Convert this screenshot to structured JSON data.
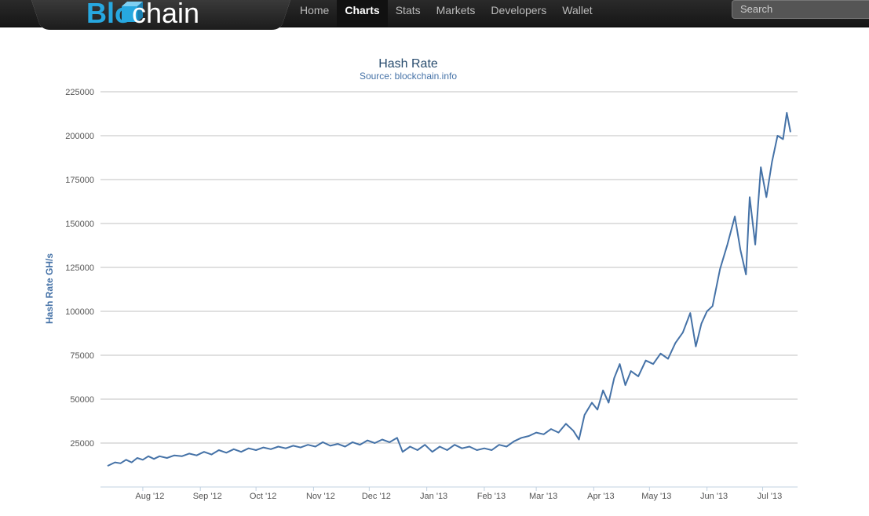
{
  "brand": {
    "logo_blue": "Blo",
    "logo_chain": "chain",
    "accent": "#27a8e0"
  },
  "nav": {
    "items": [
      {
        "label": "Home",
        "active": false
      },
      {
        "label": "Charts",
        "active": true
      },
      {
        "label": "Stats",
        "active": false
      },
      {
        "label": "Markets",
        "active": false
      },
      {
        "label": "Developers",
        "active": false
      },
      {
        "label": "Wallet",
        "active": false
      }
    ]
  },
  "search": {
    "placeholder": "Search"
  },
  "chart_data": {
    "type": "line",
    "title": "Hash Rate",
    "subtitle": "Source: blockchain.info",
    "ylabel": "Hash Rate GH/s",
    "xlabel": "",
    "ylim": [
      0,
      225000
    ],
    "yticks": [
      25000,
      50000,
      75000,
      100000,
      125000,
      150000,
      175000,
      200000,
      225000
    ],
    "xticks": [
      "Aug '12",
      "Sep '12",
      "Oct '12",
      "Nov '12",
      "Dec '12",
      "Jan '13",
      "Feb '13",
      "Mar '13",
      "Apr '13",
      "May '13",
      "Jun '13",
      "Jul '13"
    ],
    "grid": true,
    "line_color": "#4572a7",
    "series": [
      {
        "name": "",
        "x_start": "2012-07-13",
        "x_end": "2013-07-16",
        "points": [
          [
            "2012-07-13",
            12000
          ],
          [
            "2012-07-17",
            14000
          ],
          [
            "2012-07-20",
            13500
          ],
          [
            "2012-07-23",
            15500
          ],
          [
            "2012-07-26",
            14000
          ],
          [
            "2012-07-29",
            16500
          ],
          [
            "2012-08-01",
            15500
          ],
          [
            "2012-08-04",
            17500
          ],
          [
            "2012-08-07",
            16000
          ],
          [
            "2012-08-10",
            17500
          ],
          [
            "2012-08-14",
            16500
          ],
          [
            "2012-08-18",
            18000
          ],
          [
            "2012-08-22",
            17500
          ],
          [
            "2012-08-26",
            19000
          ],
          [
            "2012-08-30",
            18000
          ],
          [
            "2012-09-03",
            20000
          ],
          [
            "2012-09-07",
            18500
          ],
          [
            "2012-09-11",
            21000
          ],
          [
            "2012-09-15",
            19500
          ],
          [
            "2012-09-19",
            21500
          ],
          [
            "2012-09-23",
            20000
          ],
          [
            "2012-09-27",
            22000
          ],
          [
            "2012-10-01",
            21000
          ],
          [
            "2012-10-05",
            22500
          ],
          [
            "2012-10-09",
            21500
          ],
          [
            "2012-10-13",
            23000
          ],
          [
            "2012-10-17",
            22000
          ],
          [
            "2012-10-21",
            23500
          ],
          [
            "2012-10-25",
            22500
          ],
          [
            "2012-10-29",
            24000
          ],
          [
            "2012-11-02",
            23000
          ],
          [
            "2012-11-06",
            25500
          ],
          [
            "2012-11-10",
            23500
          ],
          [
            "2012-11-14",
            24500
          ],
          [
            "2012-11-18",
            23000
          ],
          [
            "2012-11-22",
            25500
          ],
          [
            "2012-11-26",
            24000
          ],
          [
            "2012-11-30",
            26500
          ],
          [
            "2012-12-04",
            25000
          ],
          [
            "2012-12-08",
            27000
          ],
          [
            "2012-12-12",
            25500
          ],
          [
            "2012-12-16",
            28000
          ],
          [
            "2012-12-19",
            20000
          ],
          [
            "2012-12-23",
            23000
          ],
          [
            "2012-12-27",
            21000
          ],
          [
            "2012-12-31",
            24000
          ],
          [
            "2013-01-04",
            20000
          ],
          [
            "2013-01-08",
            23000
          ],
          [
            "2013-01-12",
            21000
          ],
          [
            "2013-01-16",
            24000
          ],
          [
            "2013-01-20",
            22000
          ],
          [
            "2013-01-24",
            23000
          ],
          [
            "2013-01-28",
            21000
          ],
          [
            "2013-02-01",
            22000
          ],
          [
            "2013-02-05",
            21000
          ],
          [
            "2013-02-09",
            24000
          ],
          [
            "2013-02-13",
            23000
          ],
          [
            "2013-02-17",
            26000
          ],
          [
            "2013-02-21",
            28000
          ],
          [
            "2013-02-25",
            29000
          ],
          [
            "2013-03-01",
            31000
          ],
          [
            "2013-03-05",
            30000
          ],
          [
            "2013-03-09",
            33000
          ],
          [
            "2013-03-13",
            31000
          ],
          [
            "2013-03-17",
            36000
          ],
          [
            "2013-03-21",
            32000
          ],
          [
            "2013-03-24",
            27000
          ],
          [
            "2013-03-27",
            41000
          ],
          [
            "2013-03-31",
            48000
          ],
          [
            "2013-04-03",
            44000
          ],
          [
            "2013-04-06",
            55000
          ],
          [
            "2013-04-09",
            48000
          ],
          [
            "2013-04-12",
            62000
          ],
          [
            "2013-04-15",
            70000
          ],
          [
            "2013-04-18",
            58000
          ],
          [
            "2013-04-21",
            66000
          ],
          [
            "2013-04-25",
            63000
          ],
          [
            "2013-04-29",
            72000
          ],
          [
            "2013-05-03",
            70000
          ],
          [
            "2013-05-07",
            76000
          ],
          [
            "2013-05-11",
            73000
          ],
          [
            "2013-05-15",
            82000
          ],
          [
            "2013-05-19",
            88000
          ],
          [
            "2013-05-23",
            99000
          ],
          [
            "2013-05-26",
            80000
          ],
          [
            "2013-05-29",
            93000
          ],
          [
            "2013-06-01",
            100000
          ],
          [
            "2013-06-04",
            103000
          ],
          [
            "2013-06-08",
            124000
          ],
          [
            "2013-06-12",
            138000
          ],
          [
            "2013-06-16",
            154000
          ],
          [
            "2013-06-19",
            135000
          ],
          [
            "2013-06-22",
            121000
          ],
          [
            "2013-06-24",
            165000
          ],
          [
            "2013-06-27",
            138000
          ],
          [
            "2013-06-30",
            182000
          ],
          [
            "2013-07-03",
            165000
          ],
          [
            "2013-07-06",
            185000
          ],
          [
            "2013-07-09",
            200000
          ],
          [
            "2013-07-12",
            198000
          ],
          [
            "2013-07-14",
            213000
          ],
          [
            "2013-07-16",
            202000
          ]
        ]
      }
    ]
  }
}
